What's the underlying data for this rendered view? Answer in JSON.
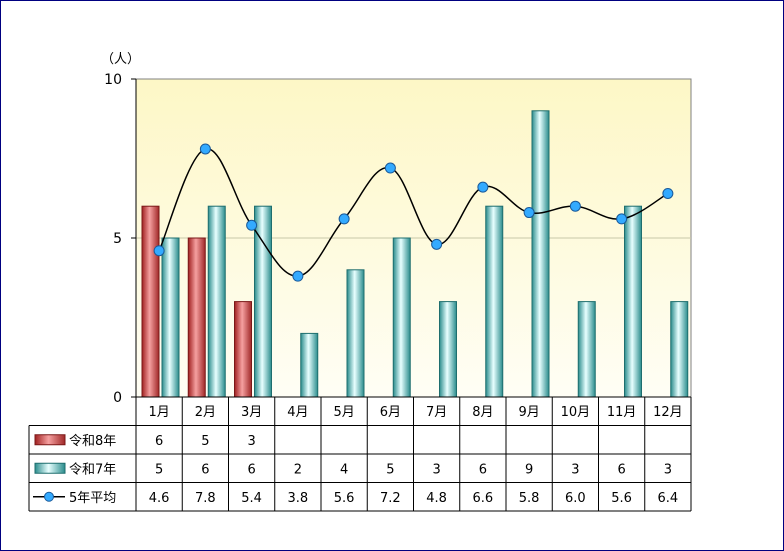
{
  "chart_data": {
    "type": "bar",
    "unit_label": "（人）",
    "categories": [
      "1月",
      "2月",
      "3月",
      "4月",
      "5月",
      "6月",
      "7月",
      "8月",
      "9月",
      "10月",
      "11月",
      "12月"
    ],
    "ylim": [
      0,
      10
    ],
    "yticks": [
      0,
      5,
      10
    ],
    "grid": true,
    "series": [
      {
        "name": "令和8年",
        "kind": "bar",
        "color": "#c84040",
        "values": [
          6,
          5,
          3,
          null,
          null,
          null,
          null,
          null,
          null,
          null,
          null,
          null
        ],
        "labels": [
          "6",
          "5",
          "3",
          "",
          "",
          "",
          "",
          "",
          "",
          "",
          "",
          ""
        ]
      },
      {
        "name": "令和7年",
        "kind": "bar",
        "color": "#40b0b0",
        "values": [
          5,
          6,
          6,
          2,
          4,
          5,
          3,
          6,
          9,
          3,
          6,
          3
        ],
        "labels": [
          "5",
          "6",
          "6",
          "2",
          "4",
          "5",
          "3",
          "6",
          "9",
          "3",
          "6",
          "3"
        ]
      },
      {
        "name": "5年平均",
        "kind": "line",
        "color": "#000000",
        "marker_color": "#33aaff",
        "values": [
          4.6,
          7.8,
          5.4,
          3.8,
          5.6,
          7.2,
          4.8,
          6.6,
          5.8,
          6.0,
          5.6,
          6.4
        ],
        "labels": [
          "4.6",
          "7.8",
          "5.4",
          "3.8",
          "5.6",
          "7.2",
          "4.8",
          "6.6",
          "5.8",
          "6.0",
          "5.6",
          "6.4"
        ]
      }
    ]
  }
}
